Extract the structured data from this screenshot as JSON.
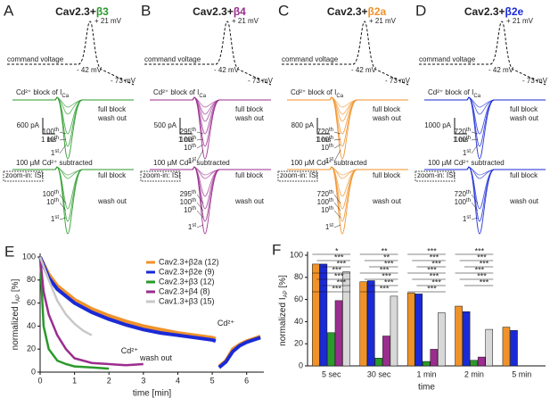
{
  "panels": {
    "peak_label": "+ 21 mV",
    "command_label": "command voltage",
    "mid_label": "- 42 mV",
    "low_label": "- 73 mV",
    "block_label": "Cd²⁺ block of I",
    "block_sub": "Ca",
    "full_block": "full block",
    "wash_out": "wash out",
    "scale_time": "1 ms",
    "subtracted_label": "100 µM Cd²⁺ subtracted",
    "zoom_label": "zoom-in: ISI",
    "items": [
      {
        "letter": "A",
        "title": "Cav2.3+",
        "beta": "β3",
        "color": "#2a9a2a",
        "scale_current": "600 pA",
        "sweeps": [
          {
            "n": "100",
            "s": "th"
          },
          {
            "n": "10",
            "s": "th"
          },
          {
            "n": "1",
            "s": "st"
          }
        ]
      },
      {
        "letter": "B",
        "title": "Cav2.3+",
        "beta": "β4",
        "color": "#9b2d8e",
        "scale_current": "500 pA",
        "sweeps": [
          {
            "n": "295",
            "s": "th"
          },
          {
            "n": "100",
            "s": "th"
          },
          {
            "n": "10",
            "s": "th"
          },
          {
            "n": "1",
            "s": "st"
          }
        ]
      },
      {
        "letter": "C",
        "title": "Cav2.3+",
        "beta": "β2a",
        "color": "#f0922a",
        "scale_current": "800 pA",
        "sweeps": [
          {
            "n": "720",
            "s": "th"
          },
          {
            "n": "100",
            "s": "th"
          },
          {
            "n": "10",
            "s": "th"
          },
          {
            "n": "1",
            "s": "st"
          }
        ]
      },
      {
        "letter": "D",
        "title": "Cav2.3+",
        "beta": "β2e",
        "color": "#1a2ad6",
        "scale_current": "1000 pA",
        "sweeps": [
          {
            "n": "720",
            "s": "th"
          },
          {
            "n": "100",
            "s": "th"
          },
          {
            "n": "1",
            "s": "st"
          }
        ]
      }
    ]
  },
  "chart_data": [
    {
      "type": "line",
      "letter": "E",
      "xlabel": "time [min]",
      "ylabel": [
        "normalized I",
        "AP",
        " [%]"
      ],
      "xlim": [
        0,
        6.5
      ],
      "xticks": [
        0,
        1,
        2,
        3,
        4,
        5,
        6
      ],
      "ylim": [
        0,
        100
      ],
      "yticks": [
        0,
        20,
        40,
        60,
        80,
        100
      ],
      "legend": "upper right",
      "annotations": [
        "Cd²⁺",
        "Cd²⁺",
        "wash out"
      ],
      "series": [
        {
          "name": "Cav2.3+β2a (12)",
          "color": "#f0922a",
          "x": [
            0,
            0.25,
            0.5,
            1,
            1.5,
            2,
            2.5,
            3,
            3.5,
            4,
            4.5,
            5,
            5.1,
            null,
            5.2,
            5.4,
            5.6,
            5.8,
            6,
            6.2,
            6.4
          ],
          "values": [
            100,
            85,
            75,
            63,
            55,
            49,
            44,
            40,
            37,
            34,
            32,
            30,
            29,
            null,
            5,
            10,
            20,
            24,
            27,
            29,
            31
          ]
        },
        {
          "name": "Cav2.3+β2e (9)",
          "color": "#1a2ad6",
          "x": [
            0,
            0.25,
            0.5,
            1,
            1.5,
            2,
            2.5,
            3,
            3.5,
            4,
            4.5,
            5,
            5.1,
            null,
            5.2,
            5.4,
            5.6,
            5.8,
            6,
            6.2,
            6.4
          ],
          "values": [
            100,
            82,
            72,
            60,
            52,
            46,
            41,
            37,
            34,
            32,
            30,
            28,
            27,
            null,
            4,
            9,
            18,
            23,
            26,
            28,
            30
          ]
        },
        {
          "name": "Cav2.3+β3 (12)",
          "color": "#2a9a2a",
          "x": [
            0,
            0.1,
            0.25,
            0.5,
            0.75,
            1,
            1.5,
            2
          ],
          "values": [
            100,
            40,
            20,
            10,
            7,
            5,
            4,
            3
          ]
        },
        {
          "name": "Cav2.3+β4 (8)",
          "color": "#9b2d8e",
          "x": [
            0,
            0.1,
            0.25,
            0.5,
            0.75,
            1,
            1.5,
            2,
            2.5,
            3
          ],
          "values": [
            100,
            70,
            50,
            32,
            20,
            12,
            8,
            7,
            6,
            7
          ]
        },
        {
          "name": "Cav1.3+β3 (15)",
          "color": "#c8c8c8",
          "x": [
            0,
            0.25,
            0.5,
            0.75,
            1,
            1.25,
            1.5
          ],
          "values": [
            100,
            80,
            62,
            50,
            42,
            36,
            32
          ]
        }
      ]
    },
    {
      "type": "bar",
      "letter": "F",
      "xlabel": "time",
      "ylabel": [
        "normalized I",
        "AP",
        " [%]"
      ],
      "categories": [
        "5 sec",
        "30 sec",
        "1 min",
        "2 min",
        "5 min"
      ],
      "ylim": [
        0,
        100
      ],
      "yticks": [
        0,
        20,
        40,
        60,
        80,
        100
      ],
      "series": [
        {
          "name": "Cav2.3+β2a",
          "color": "#f0922a",
          "values": [
            92,
            76,
            66,
            54,
            35
          ]
        },
        {
          "name": "Cav2.3+β2e",
          "color": "#1a2ad6",
          "values": [
            92,
            77,
            65,
            49,
            32
          ]
        },
        {
          "name": "Cav2.3+β3",
          "color": "#2a9a2a",
          "values": [
            30,
            7,
            4,
            5,
            null
          ]
        },
        {
          "name": "Cav2.3+β4",
          "color": "#9b2d8e",
          "values": [
            59,
            27,
            15,
            8,
            null
          ]
        },
        {
          "name": "Cav1.3+β3",
          "color": "#d8d8d8",
          "values": [
            85,
            63,
            48,
            33,
            null
          ]
        }
      ],
      "significance": [
        [
          "*",
          "***",
          "***",
          "***",
          "***",
          "***",
          "***"
        ],
        [
          "**",
          "**",
          "***",
          "***",
          "***",
          "***",
          "***"
        ],
        [
          "***",
          "***",
          "***",
          "***",
          "***",
          "***",
          "***"
        ],
        [
          "***",
          "***",
          "***",
          "***",
          "***",
          "***"
        ],
        []
      ]
    }
  ]
}
